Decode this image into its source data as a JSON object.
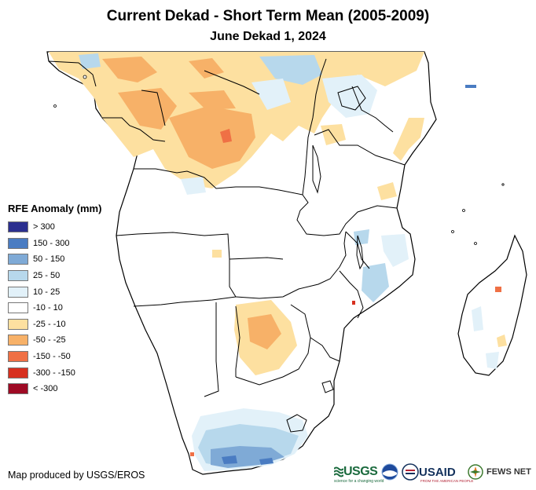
{
  "title": "Current Dekad - Short Term Mean (2005-2009)",
  "subtitle": "June Dekad 1, 2024",
  "legend": {
    "title": "RFE Anomaly (mm)",
    "items": [
      {
        "label": "> 300",
        "color": "#2b2f8f"
      },
      {
        "label": "150 - 300",
        "color": "#4a7cc2"
      },
      {
        "label": "50 - 150",
        "color": "#7faad6"
      },
      {
        "label": "25 - 50",
        "color": "#b7d8ec"
      },
      {
        "label": "10 - 25",
        "color": "#e2f1f9"
      },
      {
        "label": "-10 - 10",
        "color": "#ffffff"
      },
      {
        "label": "-25 - -10",
        "color": "#fde0a0"
      },
      {
        "label": "-50 - -25",
        "color": "#f7b168"
      },
      {
        "label": "-150 - -50",
        "color": "#ef7045"
      },
      {
        "label": "-300 - -150",
        "color": "#d7301f"
      },
      {
        "label": "< -300",
        "color": "#9e0a24"
      }
    ]
  },
  "credit": "Map produced by USGS/EROS",
  "logos": {
    "usgs": "USGS",
    "usgs_tagline": "science for a changing world",
    "usaid": "USAID",
    "usaid_tagline": "FROM THE AMERICAN PEOPLE",
    "fews": "FEWS NET"
  }
}
